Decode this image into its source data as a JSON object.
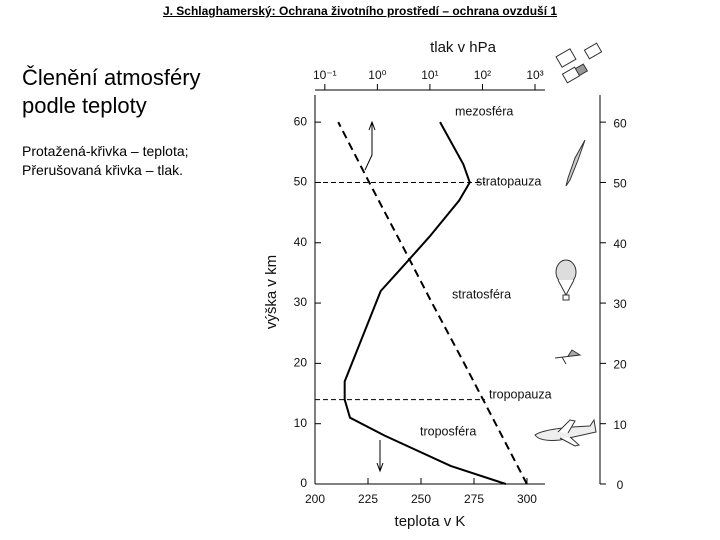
{
  "header": "J. Schlaghamerský: Ochrana životního prostředí – ochrana ovzduší 1",
  "heading": "Členění atmosféry podle teploty",
  "text": [
    "Protažená-křivka – teplota;",
    "Přerušovaná křivka – tlak."
  ],
  "chart_data": {
    "type": "line",
    "xlabel": "teplota v K",
    "x2label": "tlak v hPa",
    "ylabel": "výška v km",
    "xlim": [
      200,
      308.5
    ],
    "xticks": [
      200,
      225,
      250,
      275,
      300
    ],
    "x2lim": [
      0.065,
      1550
    ],
    "x2scale": "log",
    "x2ticks": [
      {
        "value": 0.1,
        "label": "10⁻¹"
      },
      {
        "value": 1,
        "label": "10⁰"
      },
      {
        "value": 10,
        "label": "10¹"
      },
      {
        "value": 100,
        "label": "10²"
      },
      {
        "value": 1000,
        "label": "10³"
      }
    ],
    "ylim": [
      0,
      64.5
    ],
    "yticks": [
      0,
      10,
      20,
      30,
      40,
      50,
      60
    ],
    "reference_lines": [
      50,
      14
    ],
    "series": [
      {
        "color": "#000000",
        "style": "solid",
        "x": [
          290,
          264,
          233,
          216.5,
          214,
          214,
          231,
          240,
          254,
          268,
          273,
          270,
          259
        ],
        "values": [
          0,
          3,
          8,
          11,
          14,
          17,
          32,
          35.5,
          41,
          47,
          50,
          53,
          60
        ]
      },
      {
        "color": "#000000",
        "style": "dashed",
        "axis": "x2",
        "x": [
          700,
          178,
          45,
          11,
          2.8,
          0.7,
          0.18
        ],
        "values": [
          0,
          10,
          20,
          30,
          40,
          50,
          60
        ]
      }
    ],
    "annotations": [
      "mezosféra",
      "stratopauza",
      "stratosféra",
      "tropopauza",
      "troposféra"
    ]
  }
}
